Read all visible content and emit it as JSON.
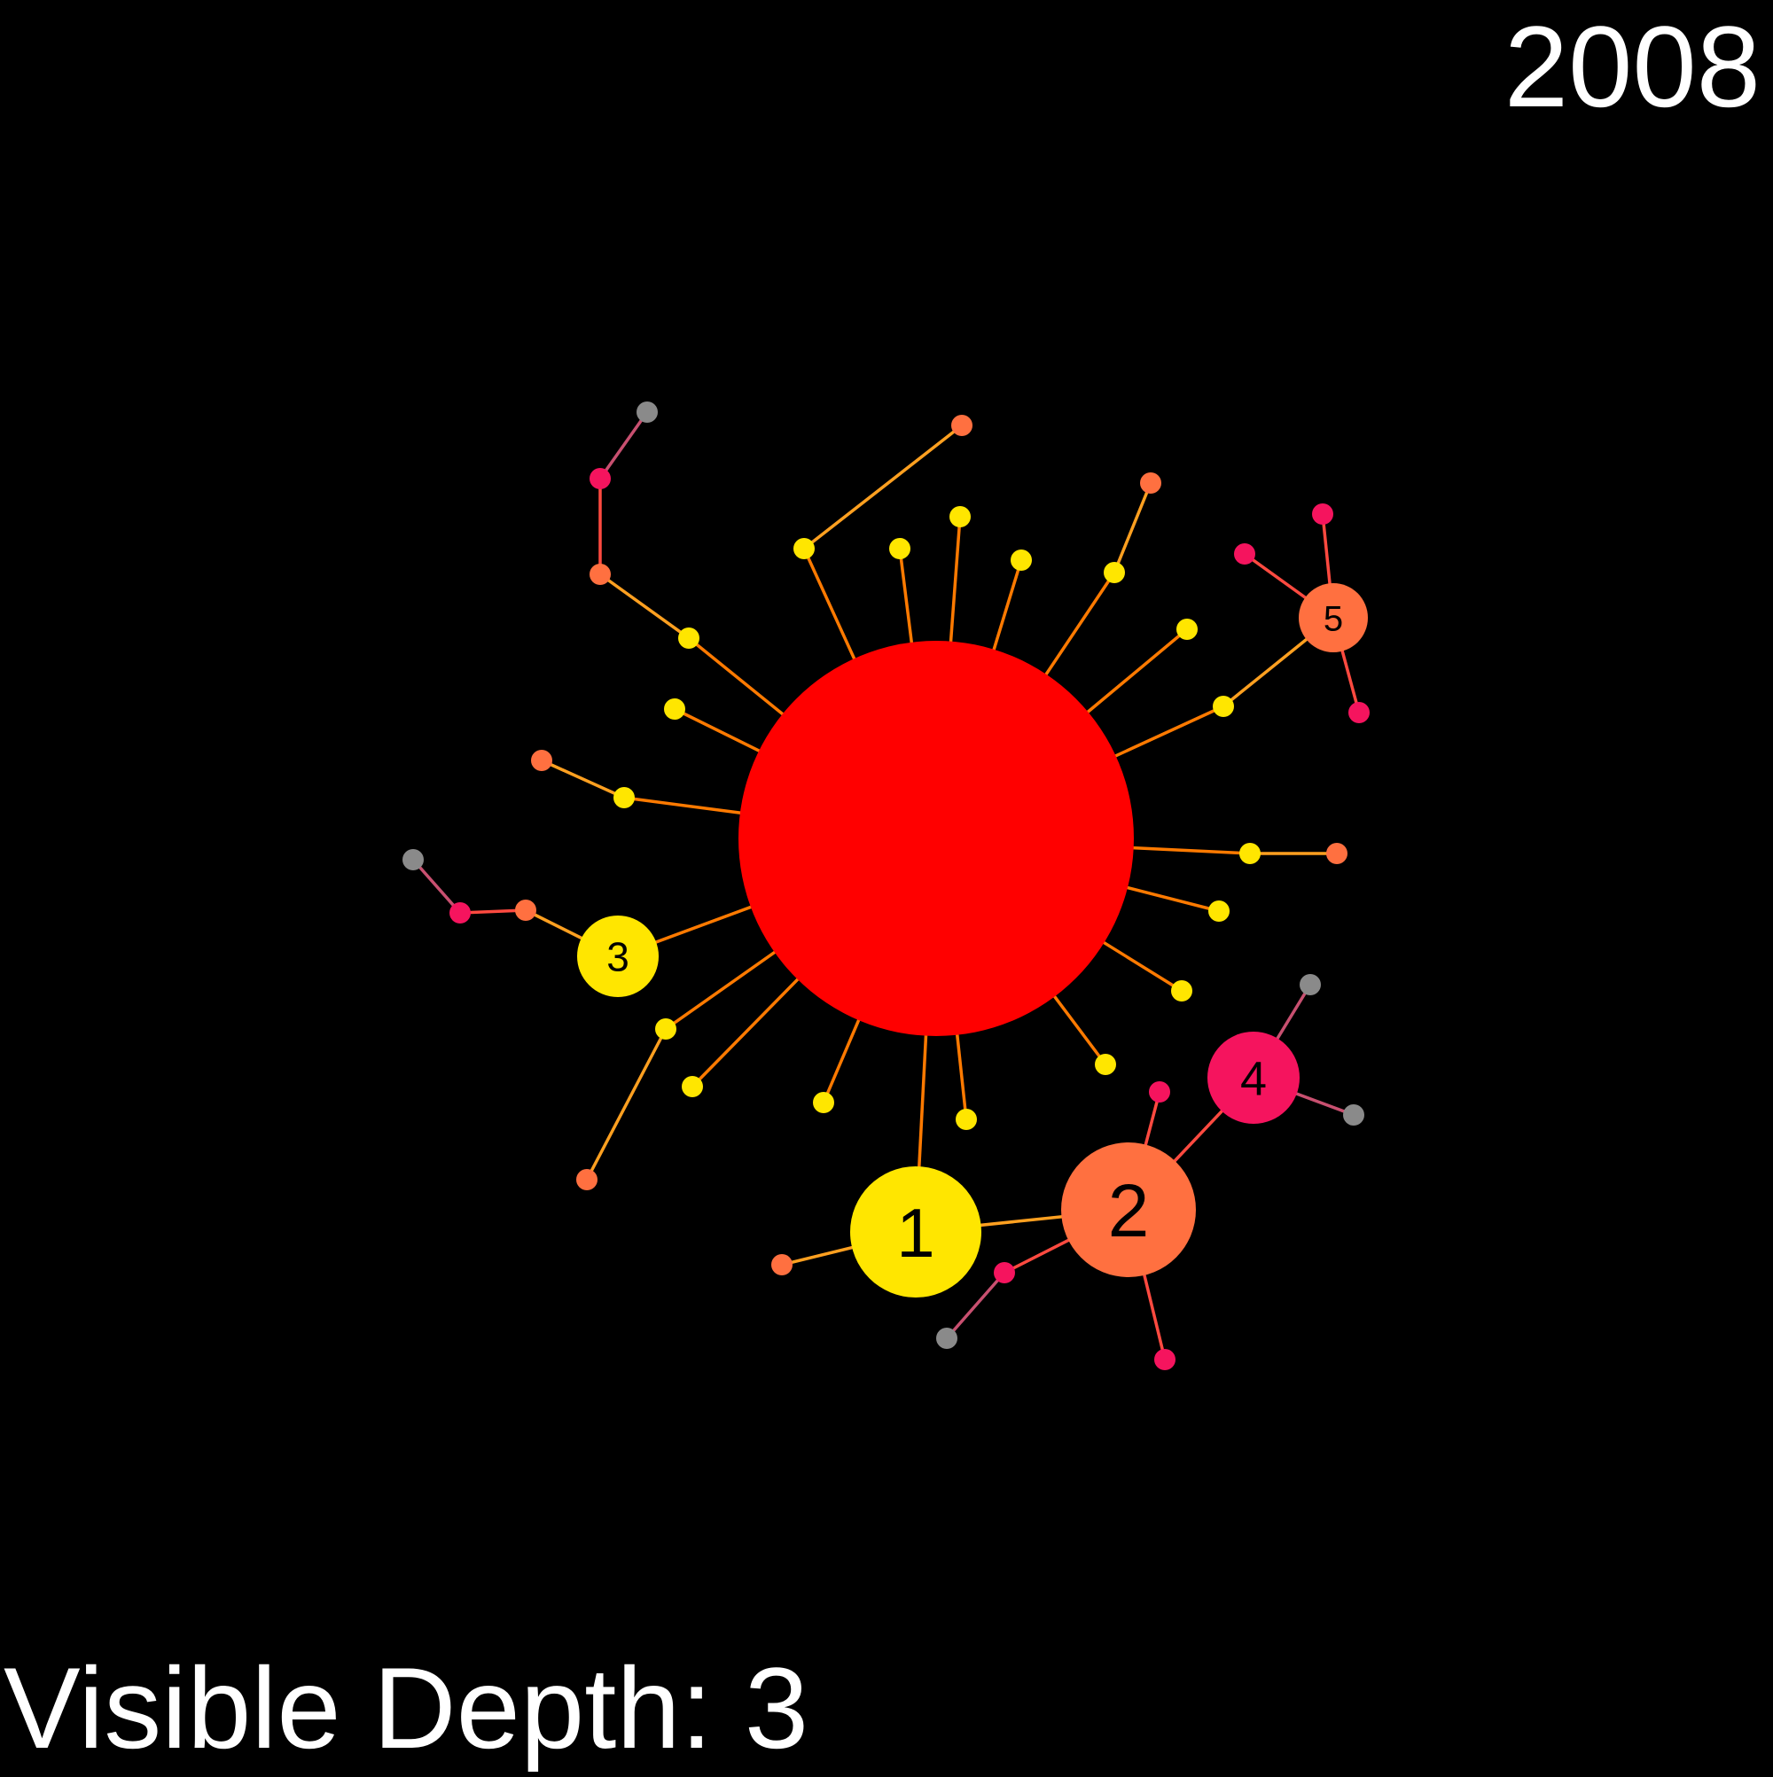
{
  "header": {
    "year": "2008"
  },
  "footer": {
    "depth_label": "Visible Depth: 3"
  },
  "colors": {
    "background": "#000000",
    "root": "#ff0000",
    "depth1": "#ffe600",
    "depth2": "#ff7040",
    "depth3": "#f5145e",
    "depth4": "#8a8a8a",
    "edge_root": "#ff7a00",
    "edge_d1": "#ffa020",
    "edge_d2": "#ff4a40",
    "edge_d3": "#c85070",
    "text": "#ffffff"
  },
  "graph": {
    "labels": [
      "1",
      "2",
      "3",
      "4",
      "5"
    ],
    "edges": [
      [
        "root",
        "n1"
      ],
      [
        "root",
        "a1"
      ],
      [
        "root",
        "b1"
      ],
      [
        "root",
        "c1"
      ],
      [
        "root",
        "d1"
      ],
      [
        "root",
        "e1"
      ],
      [
        "root",
        "f1"
      ],
      [
        "root",
        "g1"
      ],
      [
        "root",
        "h1"
      ],
      [
        "root",
        "i1"
      ],
      [
        "root",
        "j1"
      ],
      [
        "root",
        "k1"
      ],
      [
        "root",
        "l1"
      ],
      [
        "root",
        "m1"
      ],
      [
        "root",
        "o1"
      ],
      [
        "root",
        "p1"
      ],
      [
        "root",
        "q1"
      ],
      [
        "root",
        "r1"
      ],
      [
        "root",
        "s1"
      ],
      [
        "root",
        "t1"
      ],
      [
        "n1",
        "n2"
      ],
      [
        "n1",
        "n1b"
      ],
      [
        "n2",
        "n3"
      ],
      [
        "n2",
        "n2b"
      ],
      [
        "n2",
        "n2c"
      ],
      [
        "n2",
        "n2d"
      ],
      [
        "n3",
        "n3a"
      ],
      [
        "n3",
        "n3b"
      ],
      [
        "n2d",
        "n2e"
      ],
      [
        "a1",
        "a2"
      ],
      [
        "a2",
        "a3"
      ],
      [
        "a3",
        "a4"
      ],
      [
        "b1",
        "b2"
      ],
      [
        "d1",
        "d2"
      ],
      [
        "f1",
        "f2"
      ],
      [
        "g1",
        "g2"
      ],
      [
        "g2",
        "g3"
      ],
      [
        "g2",
        "g4"
      ],
      [
        "g2",
        "g5"
      ],
      [
        "i1",
        "i2"
      ],
      [
        "m1",
        "m2"
      ],
      [
        "m2",
        "m3"
      ],
      [
        "m3",
        "m4"
      ],
      [
        "m4",
        "m5"
      ],
      [
        "o1",
        "o2"
      ],
      [
        "s1",
        "s2"
      ]
    ]
  }
}
